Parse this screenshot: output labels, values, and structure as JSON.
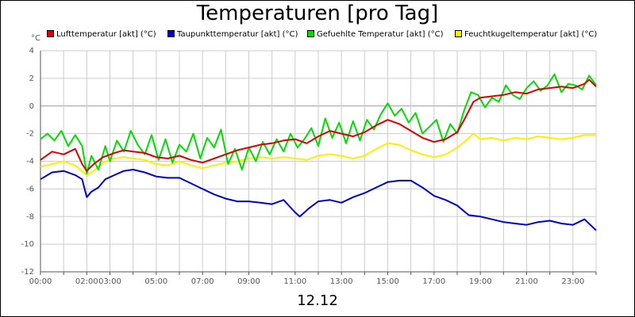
{
  "chart_data": {
    "type": "line",
    "title": "Temperaturen [pro Tag]",
    "unit_label": "°C",
    "date_label": "12.12",
    "grid": true,
    "legend_position": "top",
    "x_range_hours": [
      0,
      24
    ],
    "ylim": [
      -12,
      4
    ],
    "y_ticks": [
      4,
      2,
      0,
      -2,
      -4,
      -6,
      -8,
      -10,
      -12
    ],
    "x_ticks": [
      {
        "h": 0,
        "label": "00:00"
      },
      {
        "h": 2,
        "label": "02:00"
      },
      {
        "h": 3,
        "label": "03:00"
      },
      {
        "h": 5,
        "label": "05:00"
      },
      {
        "h": 7,
        "label": "07:00"
      },
      {
        "h": 9,
        "label": "09:00"
      },
      {
        "h": 11,
        "label": "11:00"
      },
      {
        "h": 13,
        "label": "13:00"
      },
      {
        "h": 15,
        "label": "15:00"
      },
      {
        "h": 17,
        "label": "17:00"
      },
      {
        "h": 19,
        "label": "19:00"
      },
      {
        "h": 21,
        "label": "21:00"
      },
      {
        "h": 23,
        "label": "23:00"
      }
    ],
    "series": [
      {
        "name": "Lufttemperatur [akt] (°C)",
        "color": "#dd0000",
        "points": [
          [
            0,
            -3.9
          ],
          [
            0.5,
            -3.3
          ],
          [
            1,
            -3.5
          ],
          [
            1.5,
            -3.1
          ],
          [
            1.8,
            -4.2
          ],
          [
            2.0,
            -4.7
          ],
          [
            2.3,
            -4.2
          ],
          [
            2.7,
            -3.7
          ],
          [
            3.2,
            -3.4
          ],
          [
            3.6,
            -3.2
          ],
          [
            4.0,
            -3.3
          ],
          [
            4.5,
            -3.4
          ],
          [
            5.0,
            -3.7
          ],
          [
            5.5,
            -3.8
          ],
          [
            6.0,
            -3.6
          ],
          [
            6.5,
            -3.9
          ],
          [
            7.0,
            -4.1
          ],
          [
            7.5,
            -3.8
          ],
          [
            8.0,
            -3.5
          ],
          [
            8.5,
            -3.2
          ],
          [
            9.0,
            -3.0
          ],
          [
            9.5,
            -2.8
          ],
          [
            10.0,
            -2.7
          ],
          [
            10.5,
            -2.5
          ],
          [
            11.0,
            -2.4
          ],
          [
            11.5,
            -2.7
          ],
          [
            12.0,
            -2.2
          ],
          [
            12.5,
            -1.8
          ],
          [
            13.0,
            -2.0
          ],
          [
            13.5,
            -2.2
          ],
          [
            14.0,
            -1.9
          ],
          [
            14.5,
            -1.4
          ],
          [
            15.0,
            -1.0
          ],
          [
            15.5,
            -1.3
          ],
          [
            16.0,
            -1.8
          ],
          [
            16.5,
            -2.3
          ],
          [
            17.0,
            -2.6
          ],
          [
            17.5,
            -2.4
          ],
          [
            18.0,
            -1.9
          ],
          [
            18.3,
            -1.0
          ],
          [
            18.7,
            0.3
          ],
          [
            19.0,
            0.6
          ],
          [
            19.5,
            0.7
          ],
          [
            20.0,
            0.8
          ],
          [
            20.5,
            1.0
          ],
          [
            21.0,
            0.9
          ],
          [
            21.5,
            1.2
          ],
          [
            22.0,
            1.3
          ],
          [
            22.5,
            1.4
          ],
          [
            23.0,
            1.3
          ],
          [
            23.5,
            1.6
          ],
          [
            23.7,
            1.9
          ],
          [
            24.0,
            1.4
          ]
        ]
      },
      {
        "name": "Taupunkttemperatur [akt] (°C)",
        "color": "#0000cc",
        "points": [
          [
            0,
            -5.3
          ],
          [
            0.5,
            -4.8
          ],
          [
            1.0,
            -4.7
          ],
          [
            1.5,
            -5.0
          ],
          [
            1.8,
            -5.3
          ],
          [
            2.0,
            -6.6
          ],
          [
            2.2,
            -6.2
          ],
          [
            2.5,
            -5.9
          ],
          [
            2.8,
            -5.3
          ],
          [
            3.2,
            -5.0
          ],
          [
            3.6,
            -4.7
          ],
          [
            4.0,
            -4.6
          ],
          [
            4.5,
            -4.8
          ],
          [
            5.0,
            -5.1
          ],
          [
            5.5,
            -5.2
          ],
          [
            6.0,
            -5.2
          ],
          [
            6.5,
            -5.6
          ],
          [
            7.0,
            -6.0
          ],
          [
            7.5,
            -6.4
          ],
          [
            8.0,
            -6.7
          ],
          [
            8.5,
            -6.9
          ],
          [
            9.0,
            -6.9
          ],
          [
            9.5,
            -7.0
          ],
          [
            10.0,
            -7.1
          ],
          [
            10.5,
            -6.8
          ],
          [
            11.0,
            -7.7
          ],
          [
            11.2,
            -8.0
          ],
          [
            11.6,
            -7.4
          ],
          [
            12.0,
            -6.9
          ],
          [
            12.5,
            -6.8
          ],
          [
            13.0,
            -7.0
          ],
          [
            13.5,
            -6.6
          ],
          [
            14.0,
            -6.3
          ],
          [
            14.5,
            -5.9
          ],
          [
            15.0,
            -5.5
          ],
          [
            15.5,
            -5.4
          ],
          [
            16.0,
            -5.4
          ],
          [
            16.5,
            -5.9
          ],
          [
            17.0,
            -6.5
          ],
          [
            17.5,
            -6.8
          ],
          [
            18.0,
            -7.2
          ],
          [
            18.5,
            -7.9
          ],
          [
            19.0,
            -8.0
          ],
          [
            19.5,
            -8.2
          ],
          [
            20.0,
            -8.4
          ],
          [
            20.5,
            -8.5
          ],
          [
            21.0,
            -8.6
          ],
          [
            21.5,
            -8.4
          ],
          [
            22.0,
            -8.3
          ],
          [
            22.5,
            -8.5
          ],
          [
            23.0,
            -8.6
          ],
          [
            23.5,
            -8.2
          ],
          [
            24.0,
            -9.0
          ]
        ]
      },
      {
        "name": "Gefuehlte Temperatur [akt] (°C)",
        "color": "#00dd00",
        "points": [
          [
            0,
            -2.4
          ],
          [
            0.3,
            -2.0
          ],
          [
            0.6,
            -2.5
          ],
          [
            0.9,
            -1.8
          ],
          [
            1.2,
            -2.9
          ],
          [
            1.5,
            -2.1
          ],
          [
            1.8,
            -2.9
          ],
          [
            2.0,
            -4.9
          ],
          [
            2.2,
            -3.6
          ],
          [
            2.5,
            -4.6
          ],
          [
            2.8,
            -2.9
          ],
          [
            3.0,
            -4.0
          ],
          [
            3.3,
            -2.5
          ],
          [
            3.6,
            -3.3
          ],
          [
            3.9,
            -1.8
          ],
          [
            4.2,
            -2.8
          ],
          [
            4.5,
            -3.5
          ],
          [
            4.8,
            -2.1
          ],
          [
            5.1,
            -3.9
          ],
          [
            5.4,
            -2.4
          ],
          [
            5.7,
            -4.1
          ],
          [
            6.0,
            -2.8
          ],
          [
            6.3,
            -3.3
          ],
          [
            6.6,
            -2.0
          ],
          [
            6.9,
            -3.8
          ],
          [
            7.2,
            -2.3
          ],
          [
            7.5,
            -3.0
          ],
          [
            7.8,
            -1.7
          ],
          [
            8.1,
            -4.2
          ],
          [
            8.4,
            -3.1
          ],
          [
            8.7,
            -4.6
          ],
          [
            9.0,
            -3.0
          ],
          [
            9.3,
            -4.0
          ],
          [
            9.6,
            -2.6
          ],
          [
            9.9,
            -3.5
          ],
          [
            10.2,
            -2.4
          ],
          [
            10.5,
            -3.3
          ],
          [
            10.8,
            -2.0
          ],
          [
            11.1,
            -3.0
          ],
          [
            11.4,
            -2.4
          ],
          [
            11.7,
            -1.6
          ],
          [
            12.0,
            -2.9
          ],
          [
            12.3,
            -0.9
          ],
          [
            12.6,
            -2.3
          ],
          [
            12.9,
            -1.2
          ],
          [
            13.2,
            -2.7
          ],
          [
            13.5,
            -1.1
          ],
          [
            13.8,
            -2.5
          ],
          [
            14.1,
            -1.0
          ],
          [
            14.4,
            -1.7
          ],
          [
            14.7,
            -0.6
          ],
          [
            15.0,
            0.2
          ],
          [
            15.3,
            -0.7
          ],
          [
            15.6,
            -0.2
          ],
          [
            15.9,
            -1.2
          ],
          [
            16.2,
            -0.5
          ],
          [
            16.5,
            -2.0
          ],
          [
            16.8,
            -1.5
          ],
          [
            17.1,
            -1.0
          ],
          [
            17.4,
            -2.6
          ],
          [
            17.7,
            -1.3
          ],
          [
            18.0,
            -2.0
          ],
          [
            18.3,
            -0.3
          ],
          [
            18.6,
            1.0
          ],
          [
            18.9,
            0.8
          ],
          [
            19.2,
            -0.1
          ],
          [
            19.5,
            0.6
          ],
          [
            19.8,
            0.3
          ],
          [
            20.1,
            1.5
          ],
          [
            20.4,
            0.8
          ],
          [
            20.7,
            0.5
          ],
          [
            21.0,
            1.3
          ],
          [
            21.3,
            1.8
          ],
          [
            21.6,
            1.1
          ],
          [
            21.9,
            1.5
          ],
          [
            22.2,
            2.3
          ],
          [
            22.5,
            1.0
          ],
          [
            22.8,
            1.6
          ],
          [
            23.1,
            1.5
          ],
          [
            23.4,
            1.2
          ],
          [
            23.7,
            2.2
          ],
          [
            24.0,
            1.5
          ]
        ]
      },
      {
        "name": "Feuchtkugeltemperatur [akt] (°C)",
        "color": "#ffee00",
        "points": [
          [
            0,
            -4.4
          ],
          [
            0.5,
            -4.2
          ],
          [
            1.0,
            -4.0
          ],
          [
            1.5,
            -4.3
          ],
          [
            2.0,
            -5.0
          ],
          [
            2.3,
            -4.7
          ],
          [
            2.7,
            -4.1
          ],
          [
            3.2,
            -3.8
          ],
          [
            3.6,
            -3.7
          ],
          [
            4.0,
            -3.8
          ],
          [
            4.5,
            -3.9
          ],
          [
            5.0,
            -4.2
          ],
          [
            5.5,
            -4.3
          ],
          [
            6.0,
            -4.0
          ],
          [
            6.5,
            -4.3
          ],
          [
            7.0,
            -4.5
          ],
          [
            7.5,
            -4.3
          ],
          [
            8.0,
            -4.1
          ],
          [
            8.5,
            -4.0
          ],
          [
            9.0,
            -3.8
          ],
          [
            9.5,
            -3.7
          ],
          [
            10.0,
            -3.8
          ],
          [
            10.5,
            -3.7
          ],
          [
            11.0,
            -3.8
          ],
          [
            11.5,
            -3.9
          ],
          [
            12.0,
            -3.6
          ],
          [
            12.5,
            -3.5
          ],
          [
            13.0,
            -3.6
          ],
          [
            13.5,
            -3.8
          ],
          [
            14.0,
            -3.6
          ],
          [
            14.5,
            -3.1
          ],
          [
            15.0,
            -2.7
          ],
          [
            15.5,
            -2.8
          ],
          [
            16.0,
            -3.2
          ],
          [
            16.5,
            -3.5
          ],
          [
            17.0,
            -3.7
          ],
          [
            17.5,
            -3.5
          ],
          [
            18.0,
            -3.0
          ],
          [
            18.3,
            -2.6
          ],
          [
            18.7,
            -2.0
          ],
          [
            19.0,
            -2.4
          ],
          [
            19.5,
            -2.3
          ],
          [
            20.0,
            -2.5
          ],
          [
            20.5,
            -2.3
          ],
          [
            21.0,
            -2.4
          ],
          [
            21.5,
            -2.2
          ],
          [
            22.0,
            -2.3
          ],
          [
            22.5,
            -2.4
          ],
          [
            23.0,
            -2.3
          ],
          [
            23.5,
            -2.1
          ],
          [
            24.0,
            -2.1
          ]
        ]
      }
    ]
  }
}
